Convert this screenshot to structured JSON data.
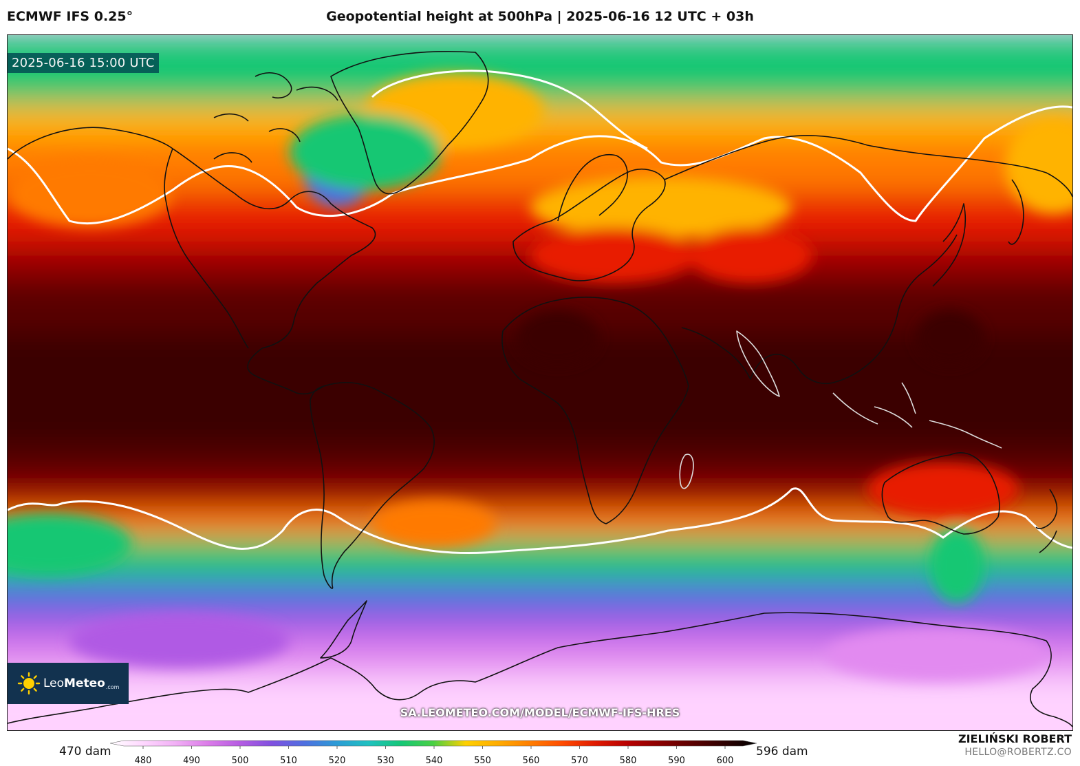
{
  "header": {
    "model": "ECMWF IFS 0.25°",
    "title": "Geopotential height at 500hPa | 2025-06-16 12 UTC + 03h"
  },
  "map": {
    "valid_time": "2025-06-16 15:00 UTC",
    "watermark": "SA.LEOMETEO.COM/MODEL/ECMWF-IFS-HRES",
    "logo": {
      "name_part1": "Leo",
      "name_part2": "Meteo",
      "suffix": ".com"
    },
    "field_band_colors": [
      "#ffd3ff",
      "#e28af0",
      "#b05ae4",
      "#4e6fe0",
      "#1fb8c6",
      "#17c773",
      "#ffb300",
      "#ff7a00",
      "#e81e00",
      "#a00000",
      "#5a0000",
      "#3a0000"
    ]
  },
  "colorbar": {
    "min_label": "470 dam",
    "max_label": "596 dam",
    "ticks": [
      "480",
      "490",
      "500",
      "510",
      "520",
      "530",
      "540",
      "550",
      "560",
      "570",
      "580",
      "590",
      "600"
    ],
    "colors": [
      "#ffffff",
      "#ffd8ff",
      "#f2b1f6",
      "#dc7de9",
      "#b65ce2",
      "#8050e0",
      "#4f6fe0",
      "#2c9bd6",
      "#1fc1c0",
      "#15c776",
      "#4ad044",
      "#ffd000",
      "#ffac00",
      "#ff7d00",
      "#ff4a00",
      "#e01a00",
      "#b80000",
      "#8a0000",
      "#5c0000",
      "#2e0000",
      "#000000"
    ]
  },
  "footer": {
    "author": "ZIELIŃSKI ROBERT",
    "contact": "HELLO@ROBERTZ.CO"
  }
}
